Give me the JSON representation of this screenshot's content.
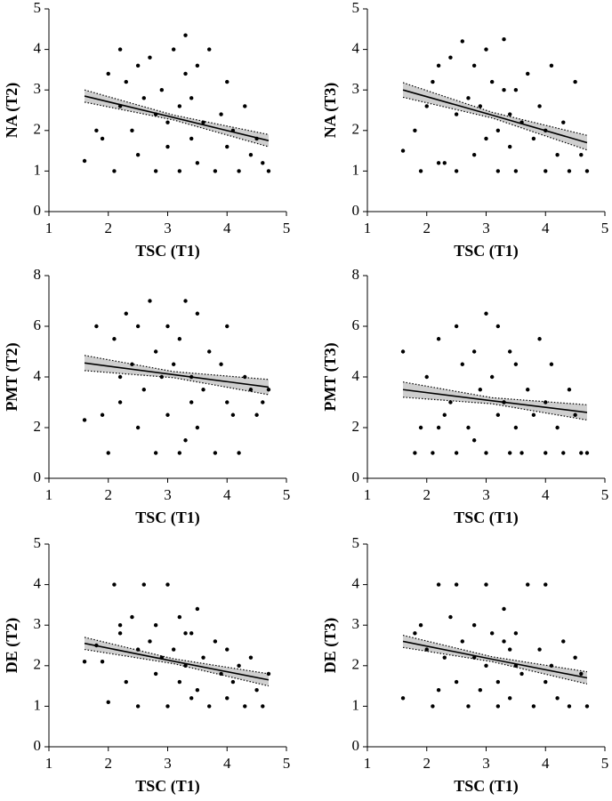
{
  "chart_data": [
    {
      "type": "scatter",
      "xlabel": "TSC (T1)",
      "ylabel": "NA (T2)",
      "xlim": [
        1,
        5
      ],
      "ylim": [
        0,
        5
      ],
      "xticks": [
        1,
        2,
        3,
        4,
        5
      ],
      "yticks": [
        0,
        1,
        2,
        3,
        4,
        5
      ],
      "color": "#000000",
      "x": [
        1.6,
        1.8,
        1.9,
        2.0,
        2.1,
        2.2,
        2.3,
        2.4,
        2.5,
        2.5,
        2.6,
        2.7,
        2.8,
        2.8,
        2.9,
        3.0,
        3.0,
        3.1,
        3.2,
        3.2,
        3.3,
        3.4,
        3.4,
        3.5,
        3.5,
        3.6,
        3.7,
        3.8,
        3.9,
        4.0,
        4.0,
        4.1,
        4.2,
        4.3,
        4.4,
        4.5,
        4.6,
        4.7,
        3.3,
        2.2
      ],
      "y": [
        1.25,
        2.0,
        1.8,
        3.4,
        1.0,
        4.0,
        3.2,
        2.0,
        3.6,
        1.4,
        2.8,
        3.8,
        2.4,
        1.0,
        3.0,
        2.2,
        1.6,
        4.0,
        2.6,
        1.0,
        3.4,
        1.8,
        2.8,
        1.2,
        3.6,
        2.2,
        4.0,
        1.0,
        2.4,
        3.2,
        1.6,
        2.0,
        1.0,
        2.6,
        1.4,
        1.8,
        1.2,
        1.0,
        4.35,
        2.6
      ],
      "fit": {
        "x": [
          1.6,
          3.1,
          4.7
        ],
        "y": [
          2.85,
          2.32,
          1.75
        ],
        "lower": [
          2.7,
          2.26,
          1.6
        ],
        "upper": [
          3.0,
          2.38,
          1.9
        ]
      }
    },
    {
      "type": "scatter",
      "xlabel": "TSC (T1)",
      "ylabel": "NA (T3)",
      "xlim": [
        1,
        5
      ],
      "ylim": [
        0,
        5
      ],
      "xticks": [
        1,
        2,
        3,
        4,
        5
      ],
      "yticks": [
        0,
        1,
        2,
        3,
        4,
        5
      ],
      "color": "#000000",
      "x": [
        1.6,
        1.8,
        1.9,
        2.0,
        2.1,
        2.2,
        2.3,
        2.4,
        2.5,
        2.5,
        2.6,
        2.7,
        2.8,
        2.8,
        2.9,
        3.0,
        3.0,
        3.1,
        3.2,
        3.2,
        3.3,
        3.4,
        3.4,
        3.5,
        3.5,
        3.6,
        3.7,
        3.8,
        3.9,
        4.0,
        4.0,
        4.1,
        4.2,
        4.3,
        4.4,
        4.5,
        4.6,
        4.7,
        3.3,
        2.2
      ],
      "y": [
        1.5,
        2.0,
        1.0,
        2.6,
        3.2,
        3.6,
        1.2,
        3.8,
        2.4,
        1.0,
        4.2,
        2.8,
        3.6,
        1.4,
        2.6,
        4.0,
        1.8,
        3.2,
        2.0,
        1.0,
        4.25,
        2.4,
        1.6,
        3.0,
        1.0,
        2.2,
        3.4,
        1.8,
        2.6,
        1.0,
        2.0,
        3.6,
        1.4,
        2.2,
        1.0,
        3.2,
        1.4,
        1.0,
        3.0,
        1.2
      ],
      "fit": {
        "x": [
          1.6,
          3.1,
          4.7
        ],
        "y": [
          3.0,
          2.38,
          1.7
        ],
        "lower": [
          2.82,
          2.31,
          1.52
        ],
        "upper": [
          3.18,
          2.45,
          1.88
        ]
      }
    },
    {
      "type": "scatter",
      "xlabel": "TSC (T1)",
      "ylabel": "PMT (T2)",
      "xlim": [
        1,
        5
      ],
      "ylim": [
        0,
        8
      ],
      "xticks": [
        1,
        2,
        3,
        4,
        5
      ],
      "yticks": [
        0,
        2,
        4,
        6,
        8
      ],
      "color": "#000000",
      "x": [
        1.6,
        1.8,
        1.9,
        2.0,
        2.1,
        2.2,
        2.3,
        2.4,
        2.5,
        2.5,
        2.6,
        2.7,
        2.8,
        2.8,
        2.9,
        3.0,
        3.0,
        3.1,
        3.2,
        3.2,
        3.3,
        3.4,
        3.4,
        3.5,
        3.5,
        3.6,
        3.7,
        3.8,
        3.9,
        4.0,
        4.0,
        4.1,
        4.2,
        4.3,
        4.4,
        4.5,
        4.6,
        4.7,
        3.3,
        2.2
      ],
      "y": [
        2.3,
        6.0,
        2.5,
        1.0,
        5.5,
        3.0,
        6.5,
        4.5,
        2.0,
        6.0,
        3.5,
        7.0,
        5.0,
        1.0,
        4.0,
        6.0,
        2.5,
        4.5,
        5.5,
        1.0,
        7.0,
        3.0,
        4.0,
        2.0,
        6.5,
        3.5,
        5.0,
        1.0,
        4.5,
        3.0,
        6.0,
        2.5,
        1.0,
        4.0,
        3.5,
        2.5,
        3.0,
        3.5,
        1.5,
        4.0
      ],
      "fit": {
        "x": [
          1.6,
          3.1,
          4.7
        ],
        "y": [
          4.55,
          4.09,
          3.6
        ],
        "lower": [
          4.25,
          3.97,
          3.3
        ],
        "upper": [
          4.85,
          4.21,
          3.9
        ]
      }
    },
    {
      "type": "scatter",
      "xlabel": "TSC (T1)",
      "ylabel": "PMT (T3)",
      "xlim": [
        1,
        5
      ],
      "ylim": [
        0,
        8
      ],
      "xticks": [
        1,
        2,
        3,
        4,
        5
      ],
      "yticks": [
        0,
        2,
        4,
        6,
        8
      ],
      "color": "#000000",
      "x": [
        1.6,
        1.8,
        1.9,
        2.0,
        2.1,
        2.2,
        2.3,
        2.4,
        2.5,
        2.5,
        2.6,
        2.7,
        2.8,
        2.8,
        2.9,
        3.0,
        3.0,
        3.1,
        3.2,
        3.2,
        3.3,
        3.4,
        3.4,
        3.5,
        3.5,
        3.6,
        3.7,
        3.8,
        3.9,
        4.0,
        4.0,
        4.1,
        4.2,
        4.3,
        4.4,
        4.5,
        4.6,
        4.7,
        3.3,
        2.2
      ],
      "y": [
        5.0,
        1.0,
        2.0,
        4.0,
        1.0,
        5.5,
        2.5,
        3.0,
        6.0,
        1.0,
        4.5,
        2.0,
        5.0,
        1.5,
        3.5,
        6.5,
        1.0,
        4.0,
        2.5,
        6.0,
        3.0,
        5.0,
        1.0,
        2.0,
        4.5,
        1.0,
        3.5,
        2.5,
        5.5,
        1.0,
        3.0,
        4.5,
        2.0,
        1.0,
        3.5,
        2.5,
        1.0,
        1.0,
        3.0,
        2.0
      ],
      "fit": {
        "x": [
          1.6,
          3.1,
          4.7
        ],
        "y": [
          3.5,
          3.06,
          2.6
        ],
        "lower": [
          3.2,
          2.94,
          2.3
        ],
        "upper": [
          3.8,
          3.18,
          2.9
        ]
      }
    },
    {
      "type": "scatter",
      "xlabel": "TSC (T1)",
      "ylabel": "DE (T2)",
      "xlim": [
        1,
        5
      ],
      "ylim": [
        0,
        5
      ],
      "xticks": [
        1,
        2,
        3,
        4,
        5
      ],
      "yticks": [
        0,
        1,
        2,
        3,
        4,
        5
      ],
      "color": "#000000",
      "x": [
        1.6,
        1.8,
        1.9,
        2.0,
        2.1,
        2.2,
        2.3,
        2.4,
        2.5,
        2.5,
        2.6,
        2.7,
        2.8,
        2.8,
        2.9,
        3.0,
        3.0,
        3.1,
        3.2,
        3.2,
        3.3,
        3.4,
        3.4,
        3.5,
        3.5,
        3.6,
        3.7,
        3.8,
        3.9,
        4.0,
        4.0,
        4.1,
        4.2,
        4.3,
        4.4,
        4.5,
        4.6,
        4.7,
        3.3,
        2.2
      ],
      "y": [
        2.1,
        2.5,
        2.1,
        1.1,
        4.0,
        2.8,
        1.6,
        3.2,
        2.4,
        1.0,
        4.0,
        2.6,
        1.8,
        3.0,
        2.2,
        1.0,
        4.0,
        2.4,
        1.6,
        3.2,
        2.0,
        1.2,
        2.8,
        3.4,
        1.4,
        2.2,
        1.0,
        2.6,
        1.8,
        1.2,
        2.4,
        1.6,
        2.0,
        1.0,
        2.2,
        1.4,
        1.0,
        1.8,
        2.8,
        3.0
      ],
      "fit": {
        "x": [
          1.6,
          3.1,
          4.7
        ],
        "y": [
          2.55,
          2.11,
          1.65
        ],
        "lower": [
          2.4,
          2.05,
          1.5
        ],
        "upper": [
          2.7,
          2.17,
          1.8
        ]
      }
    },
    {
      "type": "scatter",
      "xlabel": "TSC (T1)",
      "ylabel": "DE (T3)",
      "xlim": [
        1,
        5
      ],
      "ylim": [
        0,
        5
      ],
      "xticks": [
        1,
        2,
        3,
        4,
        5
      ],
      "yticks": [
        0,
        1,
        2,
        3,
        4,
        5
      ],
      "color": "#000000",
      "x": [
        1.6,
        1.8,
        1.9,
        2.0,
        2.1,
        2.2,
        2.3,
        2.4,
        2.5,
        2.5,
        2.6,
        2.7,
        2.8,
        2.8,
        2.9,
        3.0,
        3.0,
        3.1,
        3.2,
        3.2,
        3.3,
        3.4,
        3.4,
        3.5,
        3.5,
        3.6,
        3.7,
        3.8,
        3.9,
        4.0,
        4.0,
        4.1,
        4.2,
        4.3,
        4.4,
        4.5,
        4.6,
        4.7,
        3.3,
        2.2
      ],
      "y": [
        1.2,
        2.8,
        3.0,
        2.4,
        1.0,
        4.0,
        2.2,
        3.2,
        1.6,
        4.0,
        2.6,
        1.0,
        3.0,
        2.2,
        1.4,
        4.0,
        2.0,
        2.8,
        1.6,
        1.0,
        3.4,
        2.4,
        1.2,
        2.8,
        2.0,
        1.8,
        4.0,
        1.0,
        2.4,
        4.0,
        1.6,
        2.0,
        1.2,
        2.6,
        1.0,
        2.2,
        1.8,
        1.0,
        2.6,
        1.4
      ],
      "fit": {
        "x": [
          1.6,
          3.1,
          4.7
        ],
        "y": [
          2.6,
          2.16,
          1.7
        ],
        "lower": [
          2.45,
          2.1,
          1.55
        ],
        "upper": [
          2.75,
          2.22,
          1.85
        ]
      }
    }
  ]
}
